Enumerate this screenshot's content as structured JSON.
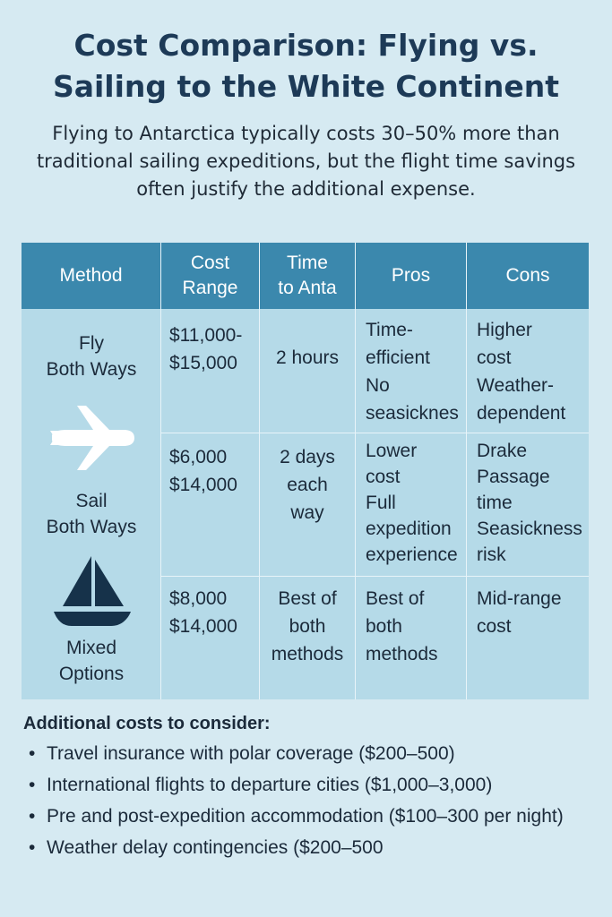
{
  "title_line1": "Cost Comparison: Flying vs.",
  "title_line2": "Sailing to the White Continent",
  "subtitle": "Flying to Antarctica typically costs 30–50% more than traditional sailing expeditions, but the flight time savings often justify the additional expense.",
  "table": {
    "headers": [
      "Method",
      "Cost\nRange",
      "Time\nto Anta",
      "Pros",
      "Cons"
    ],
    "rows": [
      {
        "method": "Fly\nBoth Ways",
        "icon": "airplane-icon",
        "cost": "$11,000-\n$15,000",
        "time": "2 hours",
        "pros": "Time-\nefficient\nNo\nseasicknes",
        "cons": "Higher\ncost\nWeather-\ndependent"
      },
      {
        "method": "Sail\nBoth Ways",
        "icon": "sailboat-icon",
        "cost": "$6,000\n$14,000",
        "time": "2 days\neach\nway",
        "pros": "Lower\ncost\nFull\nexpedition\nexperience",
        "cons": "Drake\nPassage\ntime\nSeasickness\nrisk"
      },
      {
        "method": "Mixed\nOptions",
        "cost": "$8,000\n$14,000",
        "time": "Best of\nboth\nmethods",
        "pros": "Best of\nboth\nmethods",
        "cons": "Mid-range\ncost"
      }
    ]
  },
  "additional": {
    "title": "Additional costs to consider:",
    "items": [
      "Travel insurance with polar coverage ($200–500)",
      "International flights to departure cities ($1,000–3,000)",
      "Pre and post-expedition accommodation ($100–300 per night)",
      "Weather delay contingencies ($200–500"
    ]
  },
  "colors": {
    "background": "#d6eaf2",
    "header": "#3b88ad",
    "table_body": "#b5dae8",
    "title": "#1d3a57"
  }
}
